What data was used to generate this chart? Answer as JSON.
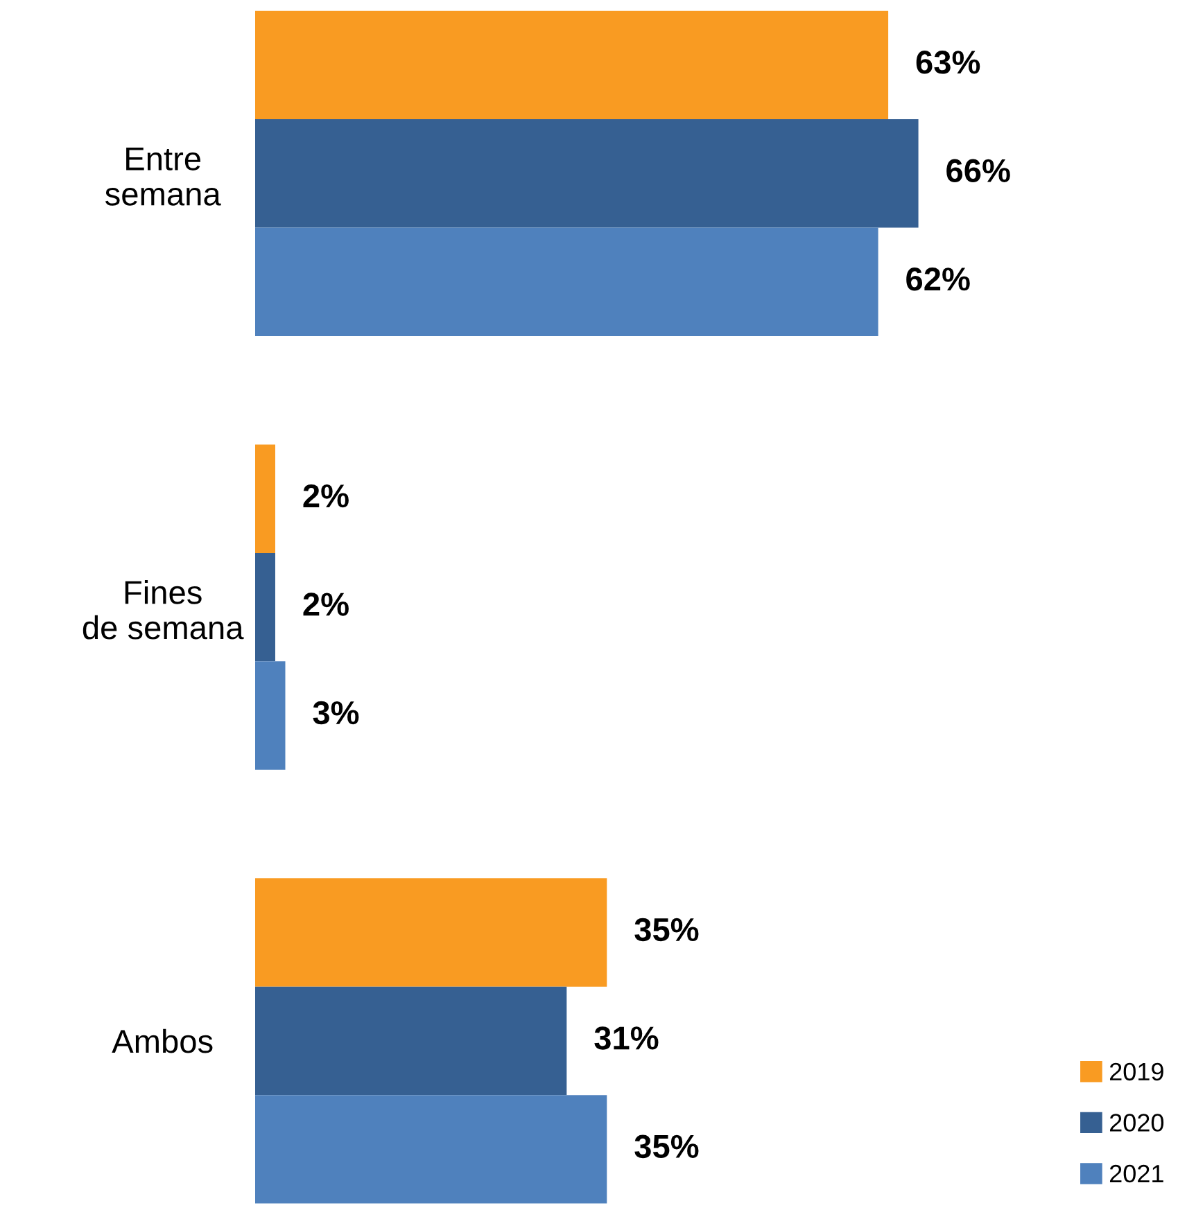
{
  "chart_data": {
    "type": "bar",
    "orientation": "horizontal",
    "categories": [
      "Entre\nsemana",
      "Fines\nde semana",
      "Ambos"
    ],
    "series": [
      {
        "name": "2019",
        "color": "#f99b22",
        "values": [
          63,
          2,
          35
        ],
        "value_labels": [
          "63%",
          "2%",
          "35%"
        ]
      },
      {
        "name": "2020",
        "color": "#366092",
        "values": [
          66,
          2,
          31
        ],
        "value_labels": [
          "66%",
          "2%",
          "31%"
        ]
      },
      {
        "name": "2021",
        "color": "#4f81bd",
        "values": [
          62,
          3,
          35
        ],
        "value_labels": [
          "62%",
          "3%",
          "35%"
        ]
      }
    ],
    "legend": "bottom right",
    "grid": false,
    "tick_labels": "y"
  }
}
